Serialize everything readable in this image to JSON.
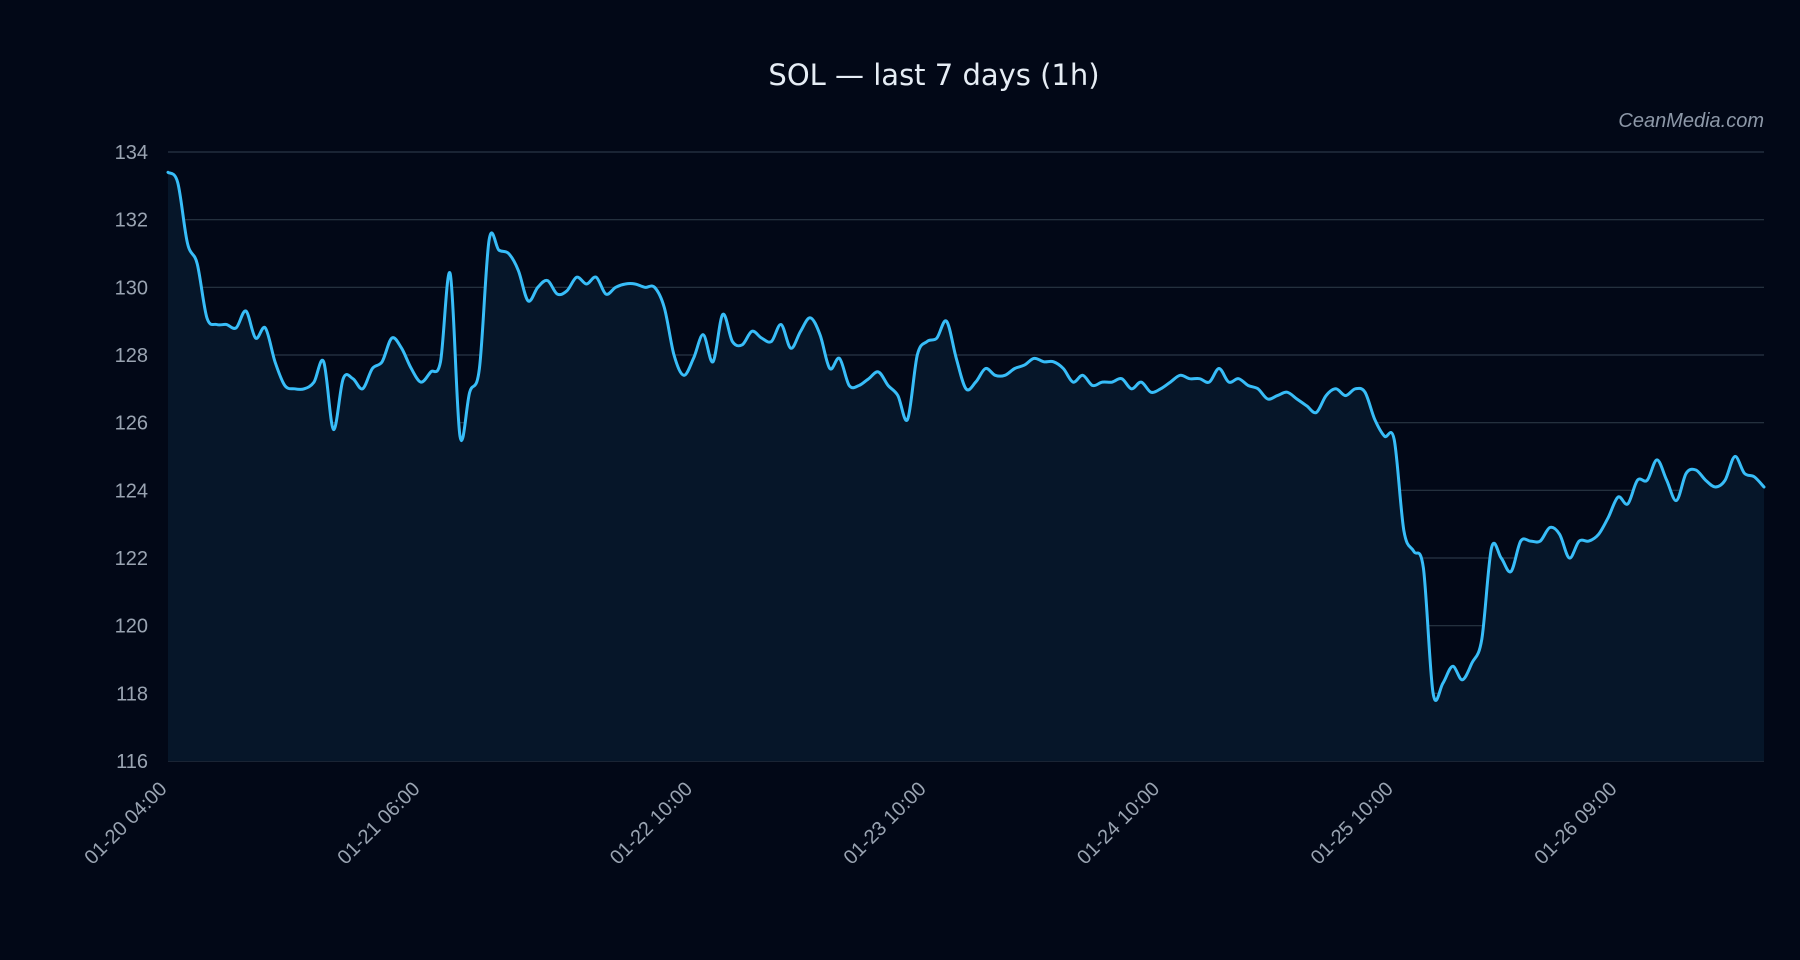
{
  "chart_data": {
    "type": "line",
    "title": "SOL — last 7 days (1h)",
    "xlabel": "",
    "ylabel": "",
    "watermark": "CeanMedia.com",
    "ylim": [
      116,
      134
    ],
    "yticks": [
      116,
      118,
      120,
      122,
      124,
      126,
      128,
      130,
      132,
      134
    ],
    "grid": true,
    "legend": "none",
    "line_color": "#38bdf8",
    "fill_color": "#061629",
    "background": "#020817",
    "x_start": "01-20 04:00",
    "x_end": "01-27 00:00",
    "xticks": [
      "01-20 04:00",
      "01-21 06:00",
      "01-22 10:00",
      "01-23 10:00",
      "01-24 10:00",
      "01-25 10:00",
      "01-26 09:00"
    ],
    "series": [
      {
        "name": "",
        "points": [
          [
            "01-20 04:00",
            133.4
          ],
          [
            "01-20 05:00",
            133.1
          ],
          [
            "01-20 06:00",
            131.3
          ],
          [
            "01-20 07:00",
            130.7
          ],
          [
            "01-20 08:00",
            129.1
          ],
          [
            "01-20 09:00",
            128.9
          ],
          [
            "01-20 10:00",
            128.9
          ],
          [
            "01-20 11:00",
            128.8
          ],
          [
            "01-20 12:00",
            129.3
          ],
          [
            "01-20 13:00",
            128.5
          ],
          [
            "01-20 14:00",
            128.8
          ],
          [
            "01-20 15:00",
            127.8
          ],
          [
            "01-20 16:00",
            127.1
          ],
          [
            "01-20 17:00",
            127.0
          ],
          [
            "01-20 18:00",
            127.0
          ],
          [
            "01-20 19:00",
            127.2
          ],
          [
            "01-20 20:00",
            127.8
          ],
          [
            "01-20 21:00",
            125.8
          ],
          [
            "01-20 22:00",
            127.3
          ],
          [
            "01-20 23:00",
            127.3
          ],
          [
            "01-21 00:00",
            127.0
          ],
          [
            "01-21 01:00",
            127.6
          ],
          [
            "01-21 02:00",
            127.8
          ],
          [
            "01-21 03:00",
            128.5
          ],
          [
            "01-21 04:00",
            128.2
          ],
          [
            "01-21 05:00",
            127.6
          ],
          [
            "01-21 06:00",
            127.2
          ],
          [
            "01-21 07:00",
            127.5
          ],
          [
            "01-21 08:00",
            127.8
          ],
          [
            "01-21 09:00",
            130.4
          ],
          [
            "01-21 10:00",
            125.6
          ],
          [
            "01-21 11:00",
            126.9
          ],
          [
            "01-21 12:00",
            127.6
          ],
          [
            "01-21 13:00",
            131.4
          ],
          [
            "01-21 14:00",
            131.1
          ],
          [
            "01-21 15:00",
            131.0
          ],
          [
            "01-21 16:00",
            130.5
          ],
          [
            "01-21 17:00",
            129.6
          ],
          [
            "01-21 18:00",
            130.0
          ],
          [
            "01-21 19:00",
            130.2
          ],
          [
            "01-21 20:00",
            129.8
          ],
          [
            "01-21 21:00",
            129.9
          ],
          [
            "01-21 22:00",
            130.3
          ],
          [
            "01-21 23:00",
            130.1
          ],
          [
            "01-22 00:00",
            130.3
          ],
          [
            "01-22 01:00",
            129.8
          ],
          [
            "01-22 02:00",
            130.0
          ],
          [
            "01-22 03:00",
            130.1
          ],
          [
            "01-22 04:00",
            130.1
          ],
          [
            "01-22 05:00",
            130.0
          ],
          [
            "01-22 06:00",
            130.0
          ],
          [
            "01-22 07:00",
            129.4
          ],
          [
            "01-22 08:00",
            128.0
          ],
          [
            "01-22 09:00",
            127.4
          ],
          [
            "01-22 10:00",
            127.9
          ],
          [
            "01-22 11:00",
            128.6
          ],
          [
            "01-22 12:00",
            127.8
          ],
          [
            "01-22 13:00",
            129.2
          ],
          [
            "01-22 14:00",
            128.4
          ],
          [
            "01-22 15:00",
            128.3
          ],
          [
            "01-22 16:00",
            128.7
          ],
          [
            "01-22 17:00",
            128.5
          ],
          [
            "01-22 18:00",
            128.4
          ],
          [
            "01-22 19:00",
            128.9
          ],
          [
            "01-22 20:00",
            128.2
          ],
          [
            "01-22 21:00",
            128.7
          ],
          [
            "01-22 22:00",
            129.1
          ],
          [
            "01-22 23:00",
            128.6
          ],
          [
            "01-23 00:00",
            127.6
          ],
          [
            "01-23 01:00",
            127.9
          ],
          [
            "01-23 02:00",
            127.1
          ],
          [
            "01-23 03:00",
            127.1
          ],
          [
            "01-23 04:00",
            127.3
          ],
          [
            "01-23 05:00",
            127.5
          ],
          [
            "01-23 06:00",
            127.1
          ],
          [
            "01-23 07:00",
            126.8
          ],
          [
            "01-23 08:00",
            126.1
          ],
          [
            "01-23 09:00",
            128.0
          ],
          [
            "01-23 10:00",
            128.4
          ],
          [
            "01-23 11:00",
            128.5
          ],
          [
            "01-23 12:00",
            129.0
          ],
          [
            "01-23 13:00",
            127.9
          ],
          [
            "01-23 14:00",
            127.0
          ],
          [
            "01-23 15:00",
            127.2
          ],
          [
            "01-23 16:00",
            127.6
          ],
          [
            "01-23 17:00",
            127.4
          ],
          [
            "01-23 18:00",
            127.4
          ],
          [
            "01-23 19:00",
            127.6
          ],
          [
            "01-23 20:00",
            127.7
          ],
          [
            "01-23 21:00",
            127.9
          ],
          [
            "01-23 22:00",
            127.8
          ],
          [
            "01-23 23:00",
            127.8
          ],
          [
            "01-24 00:00",
            127.6
          ],
          [
            "01-24 01:00",
            127.2
          ],
          [
            "01-24 02:00",
            127.4
          ],
          [
            "01-24 03:00",
            127.1
          ],
          [
            "01-24 04:00",
            127.2
          ],
          [
            "01-24 05:00",
            127.2
          ],
          [
            "01-24 06:00",
            127.3
          ],
          [
            "01-24 07:00",
            127.0
          ],
          [
            "01-24 08:00",
            127.2
          ],
          [
            "01-24 09:00",
            126.9
          ],
          [
            "01-24 10:00",
            127.0
          ],
          [
            "01-24 11:00",
            127.2
          ],
          [
            "01-24 12:00",
            127.4
          ],
          [
            "01-24 13:00",
            127.3
          ],
          [
            "01-24 14:00",
            127.3
          ],
          [
            "01-24 15:00",
            127.2
          ],
          [
            "01-24 16:00",
            127.6
          ],
          [
            "01-24 17:00",
            127.2
          ],
          [
            "01-24 18:00",
            127.3
          ],
          [
            "01-24 19:00",
            127.1
          ],
          [
            "01-24 20:00",
            127.0
          ],
          [
            "01-24 21:00",
            126.7
          ],
          [
            "01-24 22:00",
            126.8
          ],
          [
            "01-24 23:00",
            126.9
          ],
          [
            "01-25 00:00",
            126.7
          ],
          [
            "01-25 01:00",
            126.5
          ],
          [
            "01-25 02:00",
            126.3
          ],
          [
            "01-25 03:00",
            126.8
          ],
          [
            "01-25 04:00",
            127.0
          ],
          [
            "01-25 05:00",
            126.8
          ],
          [
            "01-25 06:00",
            127.0
          ],
          [
            "01-25 07:00",
            126.9
          ],
          [
            "01-25 08:00",
            126.1
          ],
          [
            "01-25 09:00",
            125.6
          ],
          [
            "01-25 10:00",
            125.5
          ],
          [
            "01-25 11:00",
            122.8
          ],
          [
            "01-25 12:00",
            122.2
          ],
          [
            "01-25 13:00",
            121.7
          ],
          [
            "01-25 14:00",
            118.0
          ],
          [
            "01-25 15:00",
            118.3
          ],
          [
            "01-25 16:00",
            118.8
          ],
          [
            "01-25 17:00",
            118.4
          ],
          [
            "01-25 18:00",
            118.9
          ],
          [
            "01-25 19:00",
            119.6
          ],
          [
            "01-25 20:00",
            122.3
          ],
          [
            "01-25 21:00",
            122.0
          ],
          [
            "01-25 22:00",
            121.6
          ],
          [
            "01-25 23:00",
            122.5
          ],
          [
            "01-26 00:00",
            122.5
          ],
          [
            "01-26 01:00",
            122.5
          ],
          [
            "01-26 02:00",
            122.9
          ],
          [
            "01-26 03:00",
            122.7
          ],
          [
            "01-26 04:00",
            122.0
          ],
          [
            "01-26 05:00",
            122.5
          ],
          [
            "01-26 06:00",
            122.5
          ],
          [
            "01-26 07:00",
            122.7
          ],
          [
            "01-26 08:00",
            123.2
          ],
          [
            "01-26 09:00",
            123.8
          ],
          [
            "01-26 10:00",
            123.6
          ],
          [
            "01-26 11:00",
            124.3
          ],
          [
            "01-26 12:00",
            124.3
          ],
          [
            "01-26 13:00",
            124.9
          ],
          [
            "01-26 14:00",
            124.3
          ],
          [
            "01-26 15:00",
            123.7
          ],
          [
            "01-26 16:00",
            124.5
          ],
          [
            "01-26 17:00",
            124.6
          ],
          [
            "01-26 18:00",
            124.3
          ],
          [
            "01-26 19:00",
            124.1
          ],
          [
            "01-26 20:00",
            124.3
          ],
          [
            "01-26 21:00",
            125.0
          ],
          [
            "01-26 22:00",
            124.5
          ],
          [
            "01-26 23:00",
            124.4
          ],
          [
            "01-27 00:00",
            124.1
          ]
        ]
      }
    ]
  }
}
